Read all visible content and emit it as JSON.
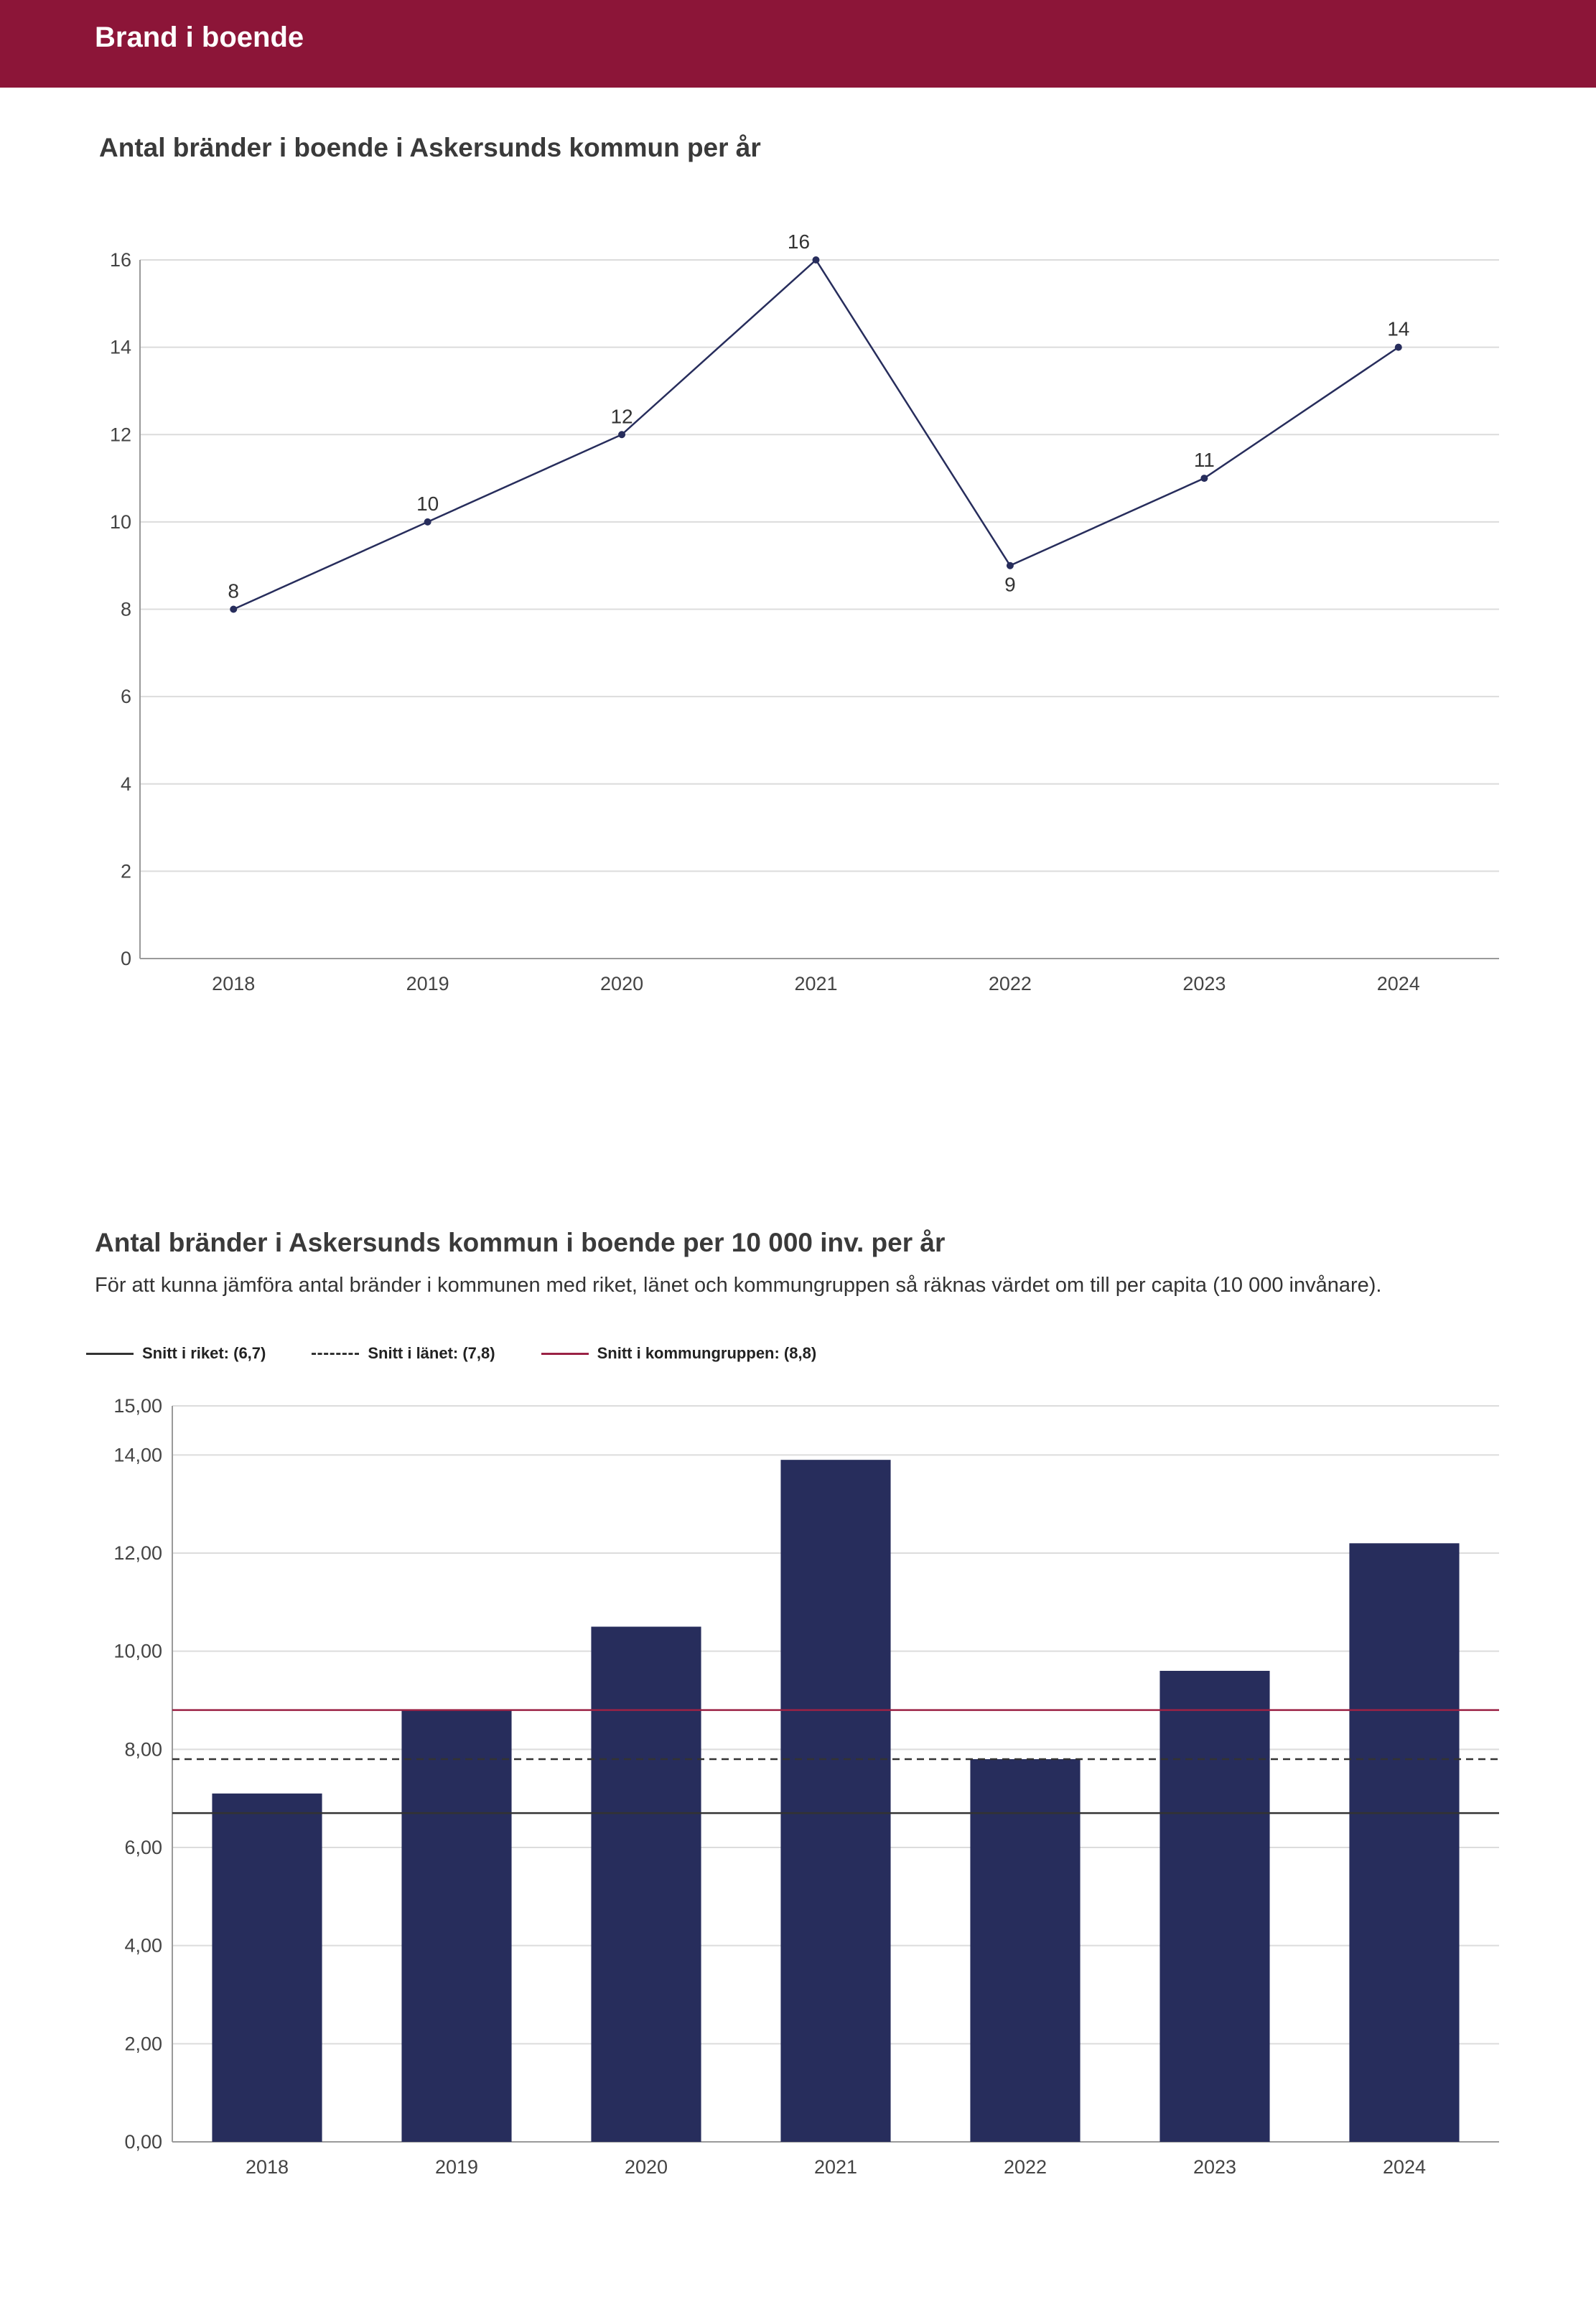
{
  "header": {
    "title": "Brand i boende"
  },
  "chart_data": [
    {
      "type": "line",
      "title": "Antal bränder i boende i Askersunds kommun per år",
      "categories": [
        "2018",
        "2019",
        "2020",
        "2021",
        "2022",
        "2023",
        "2024"
      ],
      "values": [
        8,
        10,
        12,
        16,
        9,
        11,
        14
      ],
      "data_labels": [
        "8",
        "10",
        "12",
        "16",
        "9",
        "11",
        "14"
      ],
      "yticks": [
        "0",
        "2",
        "4",
        "6",
        "8",
        "10",
        "12",
        "14",
        "16"
      ],
      "ylim": [
        0,
        16
      ],
      "grid": true,
      "line_color": "#272d5c"
    },
    {
      "type": "bar",
      "title": "Antal bränder i Askersunds kommun i boende per 10 000 inv. per år",
      "subtitle": "För att kunna jämföra antal bränder i kommunen med riket, länet och kommungruppen så räknas värdet om till per capita (10 000 invånare).",
      "categories": [
        "2018",
        "2019",
        "2020",
        "2021",
        "2022",
        "2023",
        "2024"
      ],
      "values": [
        7.1,
        8.8,
        10.5,
        13.9,
        7.8,
        9.6,
        12.2
      ],
      "yticks": [
        "0,00",
        "2,00",
        "4,00",
        "6,00",
        "8,00",
        "10,00",
        "12,00",
        "14,00",
        "15,00"
      ],
      "ylim": [
        0,
        15
      ],
      "grid": true,
      "bar_color": "#272d5c",
      "reference_lines": [
        {
          "label": "Snitt i riket: (6,7)",
          "value": 6.7,
          "style": "solid",
          "color": "#333333"
        },
        {
          "label": "Snitt i länet: (7,8)",
          "value": 7.8,
          "style": "dashed",
          "color": "#333333"
        },
        {
          "label": "Snitt i kommungruppen: (8,8)",
          "value": 8.8,
          "style": "solid",
          "color": "#9b2245"
        }
      ],
      "legend_position": "top-left"
    }
  ]
}
